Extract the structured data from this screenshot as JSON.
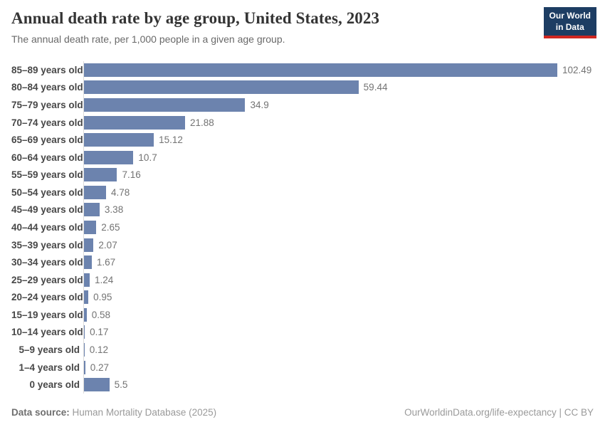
{
  "header": {
    "title": "Annual death rate by age group, United States, 2023",
    "subtitle": "The annual death rate, per 1,000 people in a given age group.",
    "logo": {
      "line1": "Our World",
      "line2": "in Data",
      "bg_color": "#1d3d63",
      "accent_color": "#cf2721"
    }
  },
  "chart_data": {
    "type": "bar",
    "orientation": "horizontal",
    "title": "Annual death rate by age group, United States, 2023",
    "xlabel": "",
    "ylabel": "",
    "xlim": [
      0,
      102.49
    ],
    "grid": false,
    "legend": false,
    "bar_color": "#6c83ae",
    "categories": [
      "85–89 years old",
      "80–84 years old",
      "75–79 years old",
      "70–74 years old",
      "65–69 years old",
      "60–64 years old",
      "55–59 years old",
      "50–54 years old",
      "45–49 years old",
      "40–44 years old",
      "35–39 years old",
      "30–34 years old",
      "25–29 years old",
      "20–24 years old",
      "15–19 years old",
      "10–14 years old",
      "5–9 years old",
      "1–4 years old",
      "0 years old"
    ],
    "values": [
      102.49,
      59.44,
      34.9,
      21.88,
      15.12,
      10.7,
      7.16,
      4.78,
      3.38,
      2.65,
      2.07,
      1.67,
      1.24,
      0.95,
      0.58,
      0.17,
      0.12,
      0.27,
      5.5
    ],
    "value_labels": [
      "102.49",
      "59.44",
      "34.9",
      "21.88",
      "15.12",
      "10.7",
      "7.16",
      "4.78",
      "3.38",
      "2.65",
      "2.07",
      "1.67",
      "1.24",
      "0.95",
      "0.58",
      "0.17",
      "0.12",
      "0.27",
      "5.5"
    ]
  },
  "footer": {
    "source_label": "Data source:",
    "source_value": "Human Mortality Database (2025)",
    "right_text": "OurWorldinData.org/life-expectancy | CC BY"
  }
}
